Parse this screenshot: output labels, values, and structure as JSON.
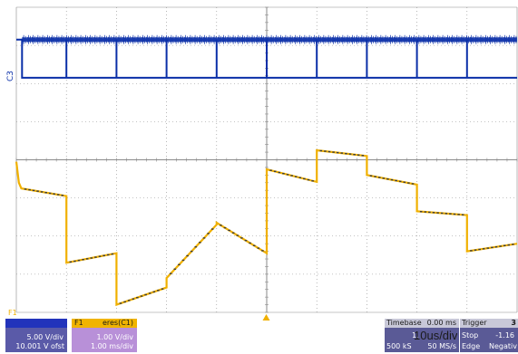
{
  "screen": {
    "colors": {
      "background": "#ffffff",
      "grid": "#8a8a8a",
      "c3_trace": "#0a2fa8",
      "f1_trace": "#f0b000",
      "f1_marker": "#3a3a3a",
      "badge_c3": "#2233bb",
      "badge_f1": "#f0b400",
      "panel_blue": "#5a5aa8",
      "panel_purple": "#b890d8",
      "panel_right": "#5a5a96",
      "panel_header": "#c8c8d8",
      "text_light": "#ffffff",
      "text_dark": "#1a1a1a"
    },
    "c3_label": "C3",
    "f1_label": "F1",
    "trigger_marker": "triangle-up-icon"
  },
  "c3_panel": {
    "scale": "5.00 V/div",
    "offset": "10.001 V ofst"
  },
  "f1_panel": {
    "badge": "F1",
    "source": "eres(C1)",
    "scale": "1.00 V/div",
    "timebase": "1.00 ms/div"
  },
  "timebase_panel": {
    "title": "Timebase",
    "delay": "0.00 ms",
    "time_per_div": "1.",
    "samples": "500 kS",
    "rate": "50 MS/s",
    "overlay_text": "10us/div"
  },
  "trigger_panel": {
    "title": "Trigger",
    "channel": "3",
    "mode": "Stop",
    "level": "-1.16",
    "type": "Edge",
    "slope": "Negativ"
  },
  "chart_data": {
    "type": "line",
    "title": "",
    "xlabel": "",
    "ylabel": "",
    "xlim": [
      0,
      10
    ],
    "grid": true,
    "series": [
      {
        "name": "C3",
        "x": [
          0,
          0.115,
          0.115,
          1.0,
          1.0,
          1.0,
          2.0,
          2.0,
          2.0,
          3.0,
          3.0,
          3.0,
          4.0,
          4.0,
          4.0,
          5.0,
          5.0,
          5.0,
          6.0,
          6.0,
          6.0,
          7.0,
          7.0,
          7.0,
          8.0,
          8.0,
          8.0,
          9.0,
          9.0,
          9.0,
          10
        ],
        "y": [
          3.15,
          3.15,
          2.15,
          2.15,
          3.15,
          2.15,
          2.15,
          3.15,
          2.15,
          2.15,
          3.15,
          2.15,
          2.15,
          3.15,
          2.15,
          2.15,
          3.15,
          2.15,
          2.15,
          3.15,
          2.15,
          2.15,
          3.15,
          2.15,
          2.15,
          3.15,
          2.15,
          2.15,
          3.15,
          2.15,
          2.15
        ]
      },
      {
        "name": "F1",
        "x": [
          0,
          0.05,
          0.1,
          1.0,
          1.0,
          2.0,
          2.0,
          3.0,
          3.0,
          4.0,
          4.0,
          5.0,
          5.0,
          6.0,
          6.0,
          7.0,
          7.0,
          8.0,
          8.0,
          9.0,
          9.0,
          10.0
        ],
        "y": [
          -0.05,
          -0.6,
          -0.75,
          -0.95,
          -2.7,
          -2.45,
          -3.8,
          -3.35,
          -3.1,
          -1.7,
          -1.65,
          -2.45,
          -0.25,
          -0.58,
          0.25,
          0.1,
          -0.4,
          -0.65,
          -1.35,
          -1.45,
          -2.4,
          -2.2
        ]
      }
    ]
  }
}
